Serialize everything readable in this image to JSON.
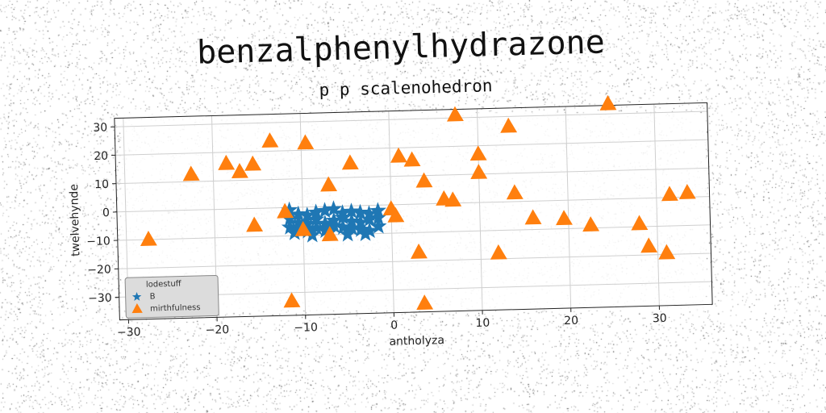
{
  "chart_data": {
    "type": "scatter",
    "title": "benzalphenylhydrazone",
    "subtitle": "p p scalenohedron",
    "xlabel": "antholyza",
    "ylabel": "twelvehynde",
    "xlim": [
      -31,
      36
    ],
    "ylim": [
      -38,
      33
    ],
    "xticks": [
      -30,
      -20,
      -10,
      0,
      10,
      20,
      30
    ],
    "yticks": [
      -30,
      -20,
      -10,
      0,
      10,
      20,
      30
    ],
    "grid": true,
    "legend": {
      "title": "lodestuff",
      "position": "lower-left"
    },
    "series": [
      {
        "name": "B",
        "marker": "star",
        "color": "#1f77b4",
        "points": [
          [
            -11.5,
            -1
          ],
          [
            -10.5,
            -2.5
          ],
          [
            -9.5,
            -3
          ],
          [
            -8.5,
            -2
          ],
          [
            -7.5,
            -1.5
          ],
          [
            -6.5,
            -1
          ],
          [
            -5.5,
            -2.5
          ],
          [
            -4.5,
            -2
          ],
          [
            -3.5,
            -2.5
          ],
          [
            -2.5,
            -3
          ],
          [
            -1.5,
            -2
          ],
          [
            -11.5,
            -4
          ],
          [
            -10.5,
            -5.5
          ],
          [
            -9.5,
            -6
          ],
          [
            -8.5,
            -4.5
          ],
          [
            -7.5,
            -6
          ],
          [
            -6.5,
            -5
          ],
          [
            -5.5,
            -4
          ],
          [
            -4.5,
            -5.5
          ],
          [
            -3.5,
            -6
          ],
          [
            -2.5,
            -5
          ],
          [
            -1.5,
            -4.5
          ],
          [
            -11.5,
            -7
          ],
          [
            -10.5,
            -8
          ],
          [
            -9.5,
            -8.5
          ],
          [
            -8.5,
            -7.5
          ],
          [
            -7.5,
            -8.5
          ],
          [
            -6.5,
            -7
          ],
          [
            -5.5,
            -7.5
          ],
          [
            -4.5,
            -8
          ],
          [
            -3.5,
            -8.5
          ],
          [
            -2.5,
            -9
          ],
          [
            -1.5,
            -7.5
          ],
          [
            -11,
            -9
          ],
          [
            -9,
            -10
          ],
          [
            -7,
            -9
          ],
          [
            -5,
            -10
          ],
          [
            -3,
            -10
          ]
        ]
      },
      {
        "name": "mirthfulness",
        "marker": "triangle",
        "color": "#ff7f0e",
        "points": [
          [
            7.5,
            31
          ],
          [
            24.8,
            33.5
          ],
          [
            13.5,
            26.5
          ],
          [
            -13.5,
            23.5
          ],
          [
            -9.5,
            22.5
          ],
          [
            -18.5,
            16
          ],
          [
            -15.5,
            15.5
          ],
          [
            -17,
            13
          ],
          [
            -22.5,
            12.5
          ],
          [
            -4.5,
            15
          ],
          [
            1,
            17
          ],
          [
            2.5,
            15.5
          ],
          [
            10,
            17
          ],
          [
            10,
            10.5
          ],
          [
            3.8,
            8
          ],
          [
            -7,
            7.5
          ],
          [
            14,
            3
          ],
          [
            6,
            1.5
          ],
          [
            7,
            1
          ],
          [
            31.5,
            1
          ],
          [
            33.5,
            1.5
          ],
          [
            -12,
            -1.5
          ],
          [
            0,
            -1.5
          ],
          [
            0.5,
            -4
          ],
          [
            -15.5,
            -6
          ],
          [
            -10,
            -8
          ],
          [
            -7,
            -10
          ],
          [
            16,
            -6
          ],
          [
            19.5,
            -6.5
          ],
          [
            22.5,
            -9
          ],
          [
            28,
            -9
          ],
          [
            -27.5,
            -10
          ],
          [
            3,
            -17
          ],
          [
            12,
            -18
          ],
          [
            29,
            -17
          ],
          [
            31,
            -19.5
          ],
          [
            -11.5,
            -33
          ],
          [
            3.5,
            -35
          ]
        ]
      }
    ]
  }
}
